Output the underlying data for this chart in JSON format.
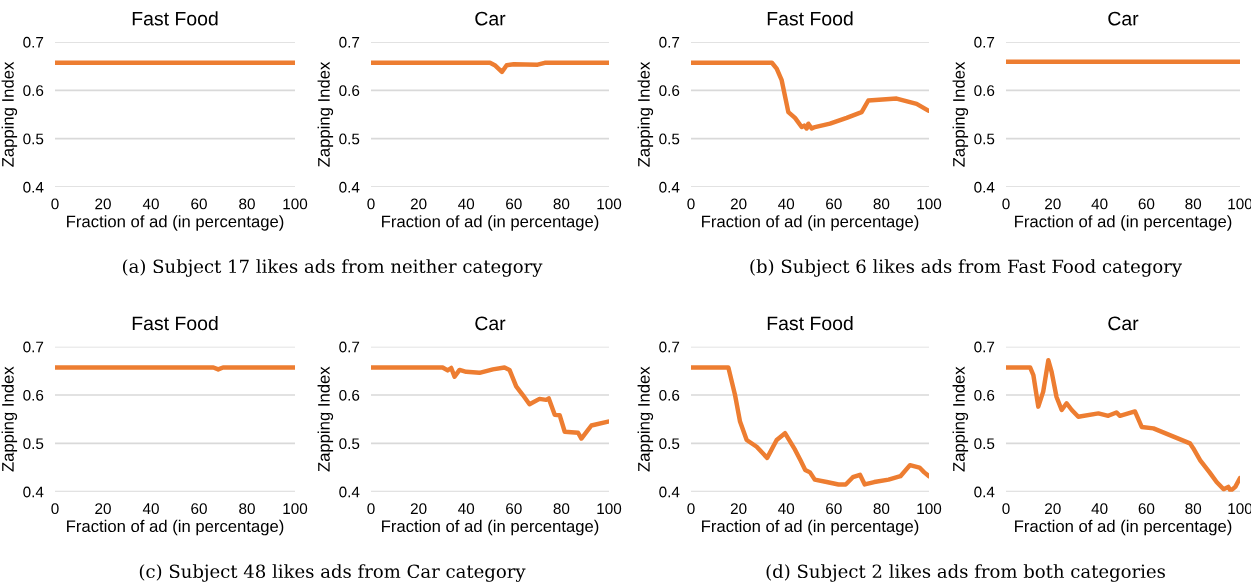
{
  "chart_data": [
    {
      "type": "line",
      "title": "Fast Food",
      "xlabel": "Fraction of ad (in percentage)",
      "ylabel": "Zapping Index",
      "color": "#ed7d31",
      "x": [
        0,
        100
      ],
      "values": [
        0.657,
        0.657
      ],
      "xlim": [
        0,
        100
      ],
      "ylim": [
        0.4,
        0.7
      ],
      "xticks": [
        0,
        20,
        40,
        60,
        80,
        100
      ],
      "yticks": [
        0.4,
        0.5,
        0.6,
        0.7
      ],
      "grid": "y",
      "annotations": [
        "(a) Subject 17 likes ads from neither category"
      ]
    },
    {
      "type": "line",
      "title": "Car",
      "xlabel": "Fraction of ad (in percentage)",
      "ylabel": "Zapping Index",
      "color": "#ed7d31",
      "x": [
        0,
        50,
        52,
        55,
        57,
        60,
        70,
        73,
        100
      ],
      "values": [
        0.657,
        0.657,
        0.652,
        0.638,
        0.652,
        0.654,
        0.653,
        0.657,
        0.657
      ],
      "xlim": [
        0,
        100
      ],
      "ylim": [
        0.4,
        0.7
      ],
      "xticks": [
        0,
        20,
        40,
        60,
        80,
        100
      ],
      "yticks": [
        0.4,
        0.5,
        0.6,
        0.7
      ],
      "grid": "y"
    },
    {
      "type": "line",
      "title": "Fast Food",
      "xlabel": "Fraction of ad (in percentage)",
      "ylabel": "Zapping Index",
      "color": "#ed7d31",
      "x": [
        0,
        34,
        36,
        38.1,
        40.9,
        43.7,
        46.5,
        47.6,
        48.6,
        49.3,
        50.7,
        52.1,
        58.4,
        65.4,
        71.7,
        74.5,
        86.4,
        94.8,
        99.7
      ],
      "values": [
        0.657,
        0.657,
        0.645,
        0.621,
        0.555,
        0.543,
        0.524,
        0.527,
        0.521,
        0.531,
        0.521,
        0.524,
        0.531,
        0.543,
        0.555,
        0.579,
        0.583,
        0.572,
        0.558
      ],
      "xlim": [
        0,
        100
      ],
      "ylim": [
        0.4,
        0.7
      ],
      "xticks": [
        0,
        20,
        40,
        60,
        80,
        100
      ],
      "yticks": [
        0.4,
        0.5,
        0.6,
        0.7
      ],
      "grid": "y",
      "annotations": [
        "(b) Subject 6 likes ads from Fast Food category"
      ]
    },
    {
      "type": "line",
      "title": "Car",
      "xlabel": "Fraction of ad (in percentage)",
      "ylabel": "Zapping Index",
      "color": "#ed7d31",
      "x": [
        0,
        100
      ],
      "values": [
        0.659,
        0.659
      ],
      "xlim": [
        0,
        100
      ],
      "ylim": [
        0.4,
        0.7
      ],
      "xticks": [
        0,
        20,
        40,
        60,
        80,
        100
      ],
      "yticks": [
        0.4,
        0.5,
        0.6,
        0.7
      ],
      "grid": "y"
    },
    {
      "type": "line",
      "title": "Fast Food",
      "xlabel": "Fraction of ad (in percentage)",
      "ylabel": "Zapping Index",
      "color": "#ed7d31",
      "x": [
        0,
        66,
        68,
        70,
        100
      ],
      "values": [
        0.657,
        0.657,
        0.653,
        0.657,
        0.657
      ],
      "xlim": [
        0,
        100
      ],
      "ylim": [
        0.4,
        0.7
      ],
      "xticks": [
        0,
        20,
        40,
        60,
        80,
        100
      ],
      "yticks": [
        0.4,
        0.5,
        0.6,
        0.7
      ],
      "grid": "y",
      "annotations": [
        "(c) Subject 48 likes ads from Car category"
      ]
    },
    {
      "type": "line",
      "title": "Car",
      "xlabel": "Fraction of ad (in percentage)",
      "ylabel": "Zapping Index",
      "color": "#ed7d31",
      "x": [
        0,
        30.1,
        32.2,
        33.7,
        35.1,
        37.2,
        40,
        45.6,
        51.2,
        56.1,
        58.2,
        61,
        63.8,
        66.6,
        70.8,
        73.6,
        74.7,
        77.2,
        79.3,
        81.4,
        87,
        88.4,
        92.6,
        99.6
      ],
      "values": [
        0.657,
        0.657,
        0.651,
        0.656,
        0.638,
        0.652,
        0.648,
        0.646,
        0.653,
        0.657,
        0.652,
        0.618,
        0.6,
        0.581,
        0.592,
        0.59,
        0.593,
        0.559,
        0.558,
        0.524,
        0.522,
        0.51,
        0.537,
        0.545
      ],
      "xlim": [
        0,
        100
      ],
      "ylim": [
        0.4,
        0.7
      ],
      "xticks": [
        0,
        20,
        40,
        60,
        80,
        100
      ],
      "yticks": [
        0.4,
        0.5,
        0.6,
        0.7
      ],
      "grid": "y"
    },
    {
      "type": "line",
      "title": "Fast Food",
      "xlabel": "Fraction of ad (in percentage)",
      "ylabel": "Zapping Index",
      "color": "#ed7d31",
      "x": [
        0,
        15.7,
        18.5,
        20.6,
        23.4,
        27.6,
        32,
        36,
        39.5,
        43.7,
        46,
        48,
        50,
        52,
        57,
        62,
        65,
        68,
        71,
        73,
        77,
        83,
        88,
        92,
        96,
        98,
        100
      ],
      "values": [
        0.657,
        0.657,
        0.6,
        0.545,
        0.507,
        0.493,
        0.47,
        0.507,
        0.521,
        0.487,
        0.465,
        0.445,
        0.44,
        0.425,
        0.42,
        0.415,
        0.415,
        0.43,
        0.435,
        0.415,
        0.42,
        0.425,
        0.432,
        0.455,
        0.45,
        0.44,
        0.432
      ],
      "xlim": [
        0,
        100
      ],
      "ylim": [
        0.4,
        0.7
      ],
      "xticks": [
        0,
        20,
        40,
        60,
        80,
        100
      ],
      "yticks": [
        0.4,
        0.5,
        0.6,
        0.7
      ],
      "grid": "y",
      "annotations": [
        "(d) Subject 2 likes ads from both categories"
      ]
    },
    {
      "type": "line",
      "title": "Car",
      "xlabel": "Fraction of ad (in percentage)",
      "ylabel": "Zapping Index",
      "color": "#ed7d31",
      "x": [
        0,
        10.3,
        11.7,
        13.8,
        15.9,
        18.1,
        19.5,
        21.6,
        23.8,
        25.9,
        28.1,
        30.9,
        39.5,
        43.7,
        47.2,
        48.7,
        55.1,
        58,
        63,
        78.6,
        80,
        83,
        87,
        90,
        93,
        95,
        96,
        98,
        100
      ],
      "values": [
        0.657,
        0.657,
        0.641,
        0.576,
        0.607,
        0.672,
        0.648,
        0.596,
        0.569,
        0.583,
        0.569,
        0.555,
        0.562,
        0.557,
        0.564,
        0.557,
        0.566,
        0.534,
        0.531,
        0.5,
        0.49,
        0.465,
        0.44,
        0.42,
        0.405,
        0.41,
        0.402,
        0.41,
        0.428
      ],
      "xlim": [
        0,
        100
      ],
      "ylim": [
        0.4,
        0.7
      ],
      "xticks": [
        0,
        20,
        40,
        60,
        80,
        100
      ],
      "yticks": [
        0.4,
        0.5,
        0.6,
        0.7
      ],
      "grid": "y"
    }
  ]
}
